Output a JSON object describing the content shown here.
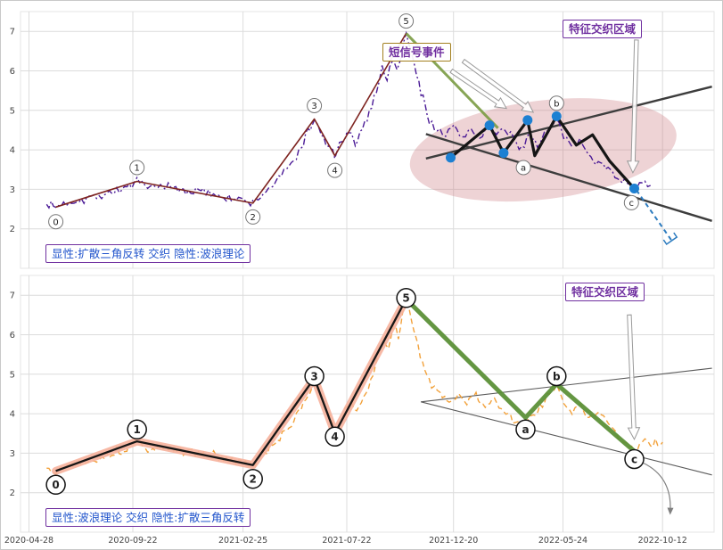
{
  "labels": {
    "signal_event": "短信号事件",
    "region_top": "特征交织区域",
    "region_bottom": "特征交织区域",
    "caption_top": "显性:扩散三角反转 交织 隐性:波浪理论",
    "caption_bottom": "显性:波浪理论 交织 隐性:扩散三角反转"
  },
  "chart_data": {
    "type": "line",
    "x_axis": {
      "tick_days": [
        0,
        147,
        303,
        450,
        601,
        756,
        897
      ],
      "tick_labels": [
        "2020-04-28",
        "2020-09-22",
        "2021-02-25",
        "2021-07-22",
        "2021-12-20",
        "2022-05-24",
        "2022-10-12"
      ],
      "xlim": [
        -12,
        970
      ]
    },
    "panels": [
      {
        "name": "explicit-broadening-triangle-implicit-elliott",
        "ylim": [
          1.0,
          7.5
        ],
        "yticks": [
          2,
          3,
          4,
          5,
          6,
          7
        ],
        "price_series": {
          "color": "#4a1a96",
          "width": 1.4,
          "dash": "7 3 2 3",
          "noise_amp": 0.14,
          "seed": 7,
          "anchors": [
            [
              25,
              2.62
            ],
            [
              38,
              2.55
            ],
            [
              60,
              2.7
            ],
            [
              85,
              2.78
            ],
            [
              110,
              2.9
            ],
            [
              135,
              3.02
            ],
            [
              153,
              3.18
            ],
            [
              168,
              3.02
            ],
            [
              190,
              3.08
            ],
            [
              215,
              2.98
            ],
            [
              240,
              2.95
            ],
            [
              265,
              2.88
            ],
            [
              290,
              2.76
            ],
            [
              317,
              2.64
            ],
            [
              332,
              2.9
            ],
            [
              350,
              3.2
            ],
            [
              368,
              3.55
            ],
            [
              382,
              3.95
            ],
            [
              395,
              4.45
            ],
            [
              404,
              4.78
            ],
            [
              414,
              4.35
            ],
            [
              424,
              4.1
            ],
            [
              433,
              3.85
            ],
            [
              443,
              4.2
            ],
            [
              453,
              4.38
            ],
            [
              462,
              4.18
            ],
            [
              472,
              4.5
            ],
            [
              482,
              4.95
            ],
            [
              492,
              5.5
            ],
            [
              500,
              6.15
            ],
            [
              507,
              5.8
            ],
            [
              514,
              6.3
            ],
            [
              521,
              5.95
            ],
            [
              528,
              6.5
            ],
            [
              534,
              6.95
            ],
            [
              541,
              6.45
            ],
            [
              549,
              5.9
            ],
            [
              558,
              5.3
            ],
            [
              567,
              4.75
            ],
            [
              578,
              4.5
            ],
            [
              590,
              4.38
            ],
            [
              602,
              4.55
            ],
            [
              614,
              4.3
            ],
            [
              626,
              4.55
            ],
            [
              638,
              4.32
            ],
            [
              650,
              4.6
            ],
            [
              662,
              4.35
            ],
            [
              674,
              4.55
            ],
            [
              686,
              4.25
            ],
            [
              698,
              4.05
            ],
            [
              708,
              4.4
            ],
            [
              720,
              4.15
            ],
            [
              733,
              4.45
            ],
            [
              747,
              4.72
            ],
            [
              757,
              4.35
            ],
            [
              768,
              4.05
            ],
            [
              780,
              4.25
            ],
            [
              792,
              3.95
            ],
            [
              806,
              3.7
            ],
            [
              820,
              3.5
            ],
            [
              836,
              3.3
            ],
            [
              848,
              3.12
            ],
            [
              857,
              3.0
            ],
            [
              868,
              3.28
            ],
            [
              880,
              3.1
            ]
          ]
        },
        "impulse_wave": {
          "color": "#7e2420",
          "width": 1.6,
          "points": [
            [
              38,
              2.55
            ],
            [
              153,
              3.2
            ],
            [
              317,
              2.65
            ],
            [
              404,
              4.78
            ],
            [
              433,
              3.85
            ],
            [
              534,
              6.95
            ]
          ]
        },
        "corrective_line": {
          "color": "#7a9b42",
          "width": 3,
          "opacity": 0.9,
          "points": [
            [
              534,
              6.95
            ],
            [
              664,
              4.55
            ]
          ]
        },
        "wedge_lines": {
          "color": "#3d3d3d",
          "width": 2.4,
          "lines": [
            [
              [
                562,
                3.78
              ],
              [
                967,
                5.6
              ]
            ],
            [
              [
                562,
                4.4
              ],
              [
                967,
                2.2
              ]
            ]
          ]
        },
        "pattern": {
          "color": "#151515",
          "width": 3.2,
          "points": [
            [
              597,
              3.8
            ],
            [
              652,
              4.62
            ],
            [
              672,
              3.92
            ],
            [
              706,
              4.75
            ],
            [
              716,
              3.85
            ],
            [
              747,
              4.85
            ],
            [
              775,
              4.12
            ],
            [
              798,
              4.38
            ],
            [
              822,
              3.72
            ],
            [
              857,
              3.02
            ]
          ],
          "dot_indices": [
            0,
            1,
            2,
            3,
            5,
            9
          ],
          "dot_color": "#1d80d2",
          "dot_radius": 5.5
        },
        "highlight_ellipse": {
          "cx_day": 728,
          "cy_val": 4.0,
          "rx_days": 190,
          "ry_vals": 1.25,
          "rotate_deg": -7,
          "fill": "#c9767d",
          "opacity": 0.32
        },
        "arrows": [
          {
            "from": [
              615,
              6.25
            ],
            "to": [
              714,
              4.95
            ],
            "shaft": 2.2,
            "head_l": 12,
            "head_w": 6
          },
          {
            "from": [
              598,
              6.0
            ],
            "to": [
              676,
              5.05
            ],
            "shaft": 2.2,
            "head_l": 12,
            "head_w": 6
          },
          {
            "from": [
              860,
              6.78
            ],
            "to": [
              855,
              3.42
            ],
            "shaft": 2.2,
            "head_l": 13,
            "head_w": 6.5
          }
        ],
        "post_c_dashed": {
          "color": "#2b7bbf",
          "width": 2,
          "dash": "5 4",
          "from": [
            860,
            2.98
          ],
          "to": [
            910,
            1.7
          ]
        },
        "wave_labels": [
          {
            "text": "0",
            "day": 38,
            "val": 2.18
          },
          {
            "text": "1",
            "day": 153,
            "val": 3.55
          },
          {
            "text": "2",
            "day": 317,
            "val": 2.3
          },
          {
            "text": "3",
            "day": 404,
            "val": 5.12
          },
          {
            "text": "4",
            "day": 433,
            "val": 3.48
          },
          {
            "text": "5",
            "day": 534,
            "val": 7.26
          },
          {
            "text": "a",
            "day": 700,
            "val": 3.55
          },
          {
            "text": "b",
            "day": 747,
            "val": 5.18
          },
          {
            "text": "c",
            "day": 853,
            "val": 2.66
          }
        ],
        "circle_r": 8,
        "circle_stroke": "#777777",
        "circle_stroke_w": 1,
        "label_font": 10,
        "label_weight": 400
      },
      {
        "name": "explicit-elliott-implicit-broadening-triangle",
        "ylim": [
          1.0,
          7.5
        ],
        "yticks": [
          2,
          3,
          4,
          5,
          6,
          7
        ],
        "price_series": {
          "color": "#f2a13a",
          "width": 1.4,
          "dash": "6 4",
          "noise_amp": 0.14,
          "seed": 13,
          "anchors": [
            [
              25,
              2.62
            ],
            [
              38,
              2.55
            ],
            [
              60,
              2.72
            ],
            [
              85,
              2.82
            ],
            [
              110,
              2.95
            ],
            [
              135,
              3.1
            ],
            [
              153,
              3.28
            ],
            [
              168,
              3.08
            ],
            [
              190,
              3.15
            ],
            [
              215,
              3.02
            ],
            [
              240,
              3.0
            ],
            [
              265,
              2.92
            ],
            [
              290,
              2.8
            ],
            [
              317,
              2.7
            ],
            [
              334,
              3.0
            ],
            [
              352,
              3.3
            ],
            [
              368,
              3.65
            ],
            [
              382,
              4.0
            ],
            [
              395,
              4.5
            ],
            [
              404,
              4.88
            ],
            [
              412,
              4.55
            ],
            [
              422,
              4.05
            ],
            [
              433,
              3.52
            ],
            [
              444,
              3.95
            ],
            [
              454,
              4.2
            ],
            [
              464,
              4.05
            ],
            [
              474,
              4.35
            ],
            [
              484,
              4.85
            ],
            [
              494,
              5.4
            ],
            [
              502,
              5.95
            ],
            [
              509,
              5.65
            ],
            [
              516,
              6.25
            ],
            [
              523,
              5.95
            ],
            [
              529,
              6.45
            ],
            [
              534,
              6.9
            ],
            [
              542,
              6.35
            ],
            [
              551,
              5.75
            ],
            [
              560,
              5.15
            ],
            [
              570,
              4.7
            ],
            [
              582,
              4.45
            ],
            [
              595,
              4.28
            ],
            [
              608,
              4.5
            ],
            [
              620,
              4.25
            ],
            [
              633,
              4.48
            ],
            [
              646,
              4.15
            ],
            [
              659,
              4.38
            ],
            [
              672,
              4.05
            ],
            [
              685,
              3.85
            ],
            [
              696,
              3.7
            ],
            [
              703,
              3.65
            ],
            [
              714,
              3.95
            ],
            [
              727,
              4.25
            ],
            [
              740,
              4.6
            ],
            [
              747,
              4.8
            ],
            [
              757,
              4.35
            ],
            [
              769,
              4.05
            ],
            [
              781,
              4.22
            ],
            [
              793,
              3.88
            ],
            [
              807,
              4.05
            ],
            [
              820,
              3.72
            ],
            [
              834,
              3.42
            ],
            [
              846,
              3.2
            ],
            [
              857,
              3.05
            ],
            [
              868,
              3.3
            ],
            [
              880,
              3.22
            ],
            [
              897,
              3.28
            ]
          ]
        },
        "impulse_wave": {
          "color": "#161616",
          "width": 2.3,
          "glow_color": "#f6b19c",
          "glow_width": 9,
          "points": [
            [
              38,
              2.55
            ],
            [
              153,
              3.3
            ],
            [
              317,
              2.7
            ],
            [
              404,
              4.9
            ],
            [
              433,
              3.5
            ],
            [
              534,
              6.9
            ]
          ]
        },
        "corrective_line": {
          "color": "#5c9038",
          "width": 5,
          "opacity": 0.95,
          "points": [
            [
              534,
              6.9
            ],
            [
              703,
              3.9
            ],
            [
              747,
              4.75
            ],
            [
              857,
              3.05
            ]
          ]
        },
        "wedge_lines": {
          "color": "#5a5a5a",
          "width": 1.1,
          "lines": [
            [
              [
                555,
                4.3
              ],
              [
                967,
                5.15
              ]
            ],
            [
              [
                555,
                4.3
              ],
              [
                967,
                2.45
              ]
            ]
          ]
        },
        "arrows": [
          {
            "from": [
              850,
              6.5
            ],
            "to": [
              857,
              3.35
            ],
            "shaft": 2.2,
            "head_l": 13,
            "head_w": 6.5
          }
        ],
        "post_c_curve": {
          "color": "#808080",
          "width": 1.2,
          "from": [
            870,
            2.75
          ],
          "ctrl": [
            910,
            2.4
          ],
          "to": [
            908,
            1.55
          ]
        },
        "wave_labels": [
          {
            "text": "0",
            "day": 38,
            "val": 2.2
          },
          {
            "text": "1",
            "day": 153,
            "val": 3.6
          },
          {
            "text": "2",
            "day": 317,
            "val": 2.35
          },
          {
            "text": "3",
            "day": 404,
            "val": 4.95
          },
          {
            "text": "4",
            "day": 433,
            "val": 3.42
          },
          {
            "text": "5",
            "day": 534,
            "val": 6.93
          },
          {
            "text": "a",
            "day": 703,
            "val": 3.6
          },
          {
            "text": "b",
            "day": 747,
            "val": 4.95
          },
          {
            "text": "c",
            "day": 857,
            "val": 2.85
          }
        ],
        "circle_r": 10.5,
        "circle_stroke": "#111111",
        "circle_stroke_w": 1.5,
        "label_font": 12,
        "label_weight": 600
      }
    ]
  }
}
